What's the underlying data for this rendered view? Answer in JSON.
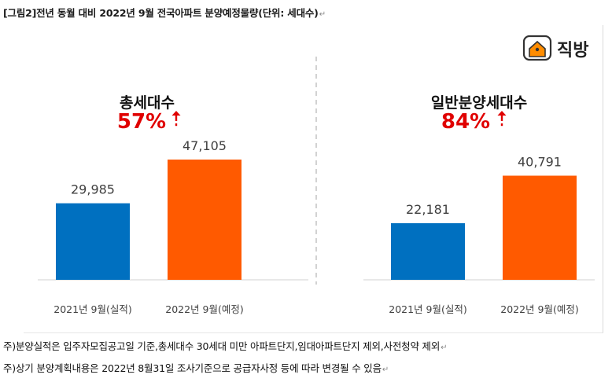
{
  "title": "[그림2]전년 동월 대비 2022년 9월 전국아파트 분양예정물량(단위: 세대수)",
  "return_mark": "↵",
  "brand": {
    "name": "직방",
    "icon": "house-logo-icon",
    "color": "#ff6a00"
  },
  "colors": {
    "blue": "#0070c0",
    "orange": "#ff5a00",
    "red": "#e00000",
    "divider": "#a6a6a6",
    "axis": "#d0d0d0"
  },
  "chart_data": [
    {
      "type": "bar",
      "title": "총세대수",
      "change_label": "57%",
      "change_direction": "up",
      "categories": [
        "2021년 9월(실적)",
        "2022년 9월(예정)"
      ],
      "values": [
        29985,
        47105
      ],
      "value_labels": [
        "29,985",
        "47,105"
      ],
      "ylim": [
        0,
        60000
      ]
    },
    {
      "type": "bar",
      "title": "일반분양세대수",
      "change_label": "84%",
      "change_direction": "up",
      "categories": [
        "2021년 9월(실적)",
        "2022년 9월(예정)"
      ],
      "values": [
        22181,
        40791
      ],
      "value_labels": [
        "22,181",
        "40,791"
      ],
      "ylim": [
        0,
        60000
      ]
    }
  ],
  "notes": [
    "주)분양실적은 입주자모집공고일 기준,총세대수 30세대 미만 아파트단지,임대아파트단지 제외,사전청약 제외",
    "주)상기 분양계획내용은 2022년 8월31일 조사기준으로 공급자사정 등에 따라 변경될 수 있음"
  ]
}
